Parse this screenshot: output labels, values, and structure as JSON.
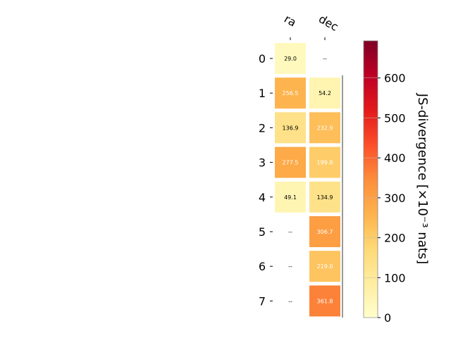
{
  "chart_data": {
    "type": "heatmap",
    "columns": [
      "ra",
      "dec"
    ],
    "rows": [
      "0",
      "1",
      "2",
      "3",
      "4",
      "5",
      "6",
      "7"
    ],
    "values": [
      [
        29.0,
        null
      ],
      [
        256.5,
        54.2
      ],
      [
        136.9,
        232.9
      ],
      [
        277.5,
        199.8
      ],
      [
        49.1,
        134.9
      ],
      [
        null,
        306.7
      ],
      [
        null,
        219.0
      ],
      [
        null,
        361.8
      ]
    ],
    "cell_labels": [
      [
        "29.0",
        "--"
      ],
      [
        "256.5",
        "54.2"
      ],
      [
        "136.9",
        "232.9"
      ],
      [
        "277.5",
        "199.8"
      ],
      [
        "49.1",
        "134.9"
      ],
      [
        "--",
        "306.7"
      ],
      [
        "--",
        "219.0"
      ],
      [
        "--",
        "361.8"
      ]
    ],
    "colorbar": {
      "label": "JS-divergence [×10⁻³ nats]",
      "range": [
        0,
        693
      ],
      "ticks": [
        0,
        100,
        200,
        300,
        400,
        500,
        600
      ],
      "colormap": "YlOrRd"
    }
  }
}
